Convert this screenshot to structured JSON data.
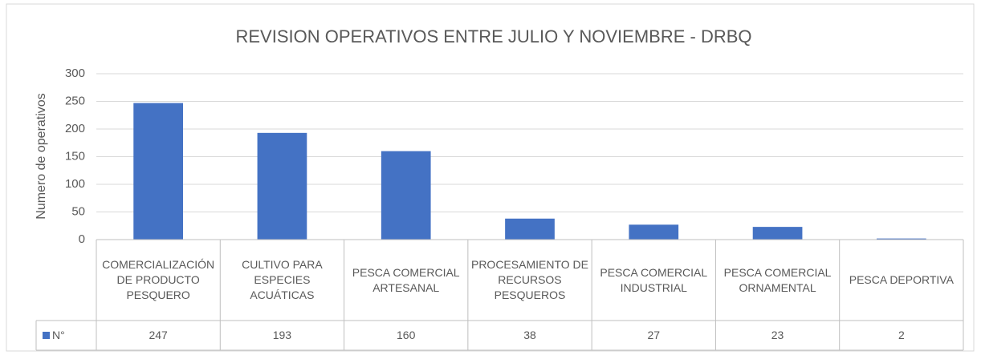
{
  "chart_data": {
    "type": "bar",
    "title": "REVISION OPERATIVOS ENTRE JULIO Y NOVIEMBRE - DRBQ",
    "y_label": "Numero de operativos",
    "categories": [
      "COMERCIALIZACIÓN DE PRODUCTO PESQUERO",
      "CULTIVO PARA ESPECIES ACUÁTICAS",
      "PESCA COMERCIAL ARTESANAL",
      "PROCESAMIENTO DE RECURSOS PESQUEROS",
      "PESCA COMERCIAL INDUSTRIAL",
      "PESCA COMERCIAL ORNAMENTAL",
      "PESCA DEPORTIVA"
    ],
    "series": [
      {
        "name": "N°",
        "color": "#4472c4",
        "values": [
          247,
          193,
          160,
          38,
          27,
          23,
          2
        ]
      }
    ],
    "ylim": [
      0,
      300
    ],
    "yticks": [
      0,
      50,
      100,
      150,
      200,
      250,
      300
    ],
    "grid": true,
    "data_table": true
  }
}
